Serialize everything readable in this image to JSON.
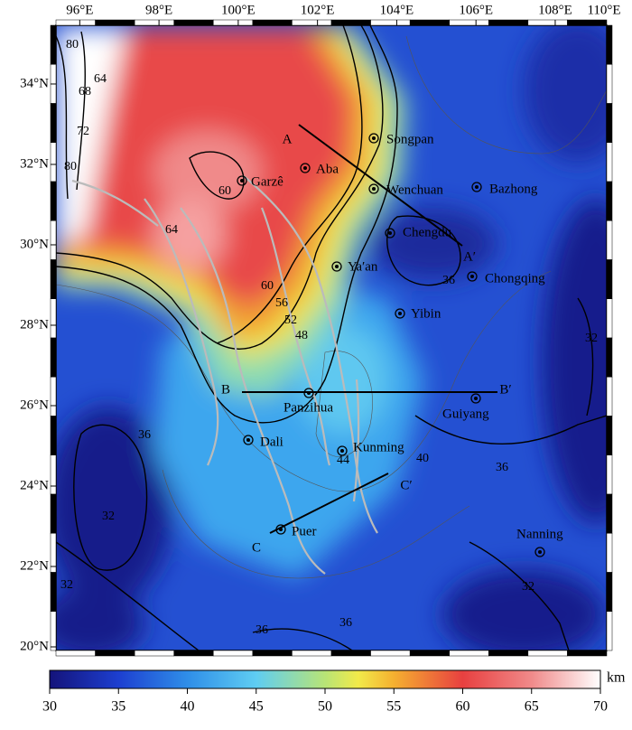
{
  "map": {
    "x_ticks": [
      {
        "value": 96,
        "label": "96°E"
      },
      {
        "value": 98,
        "label": "98°E"
      },
      {
        "value": 100,
        "label": "100°E"
      },
      {
        "value": 102,
        "label": "102°E"
      },
      {
        "value": 104,
        "label": "104°E"
      },
      {
        "value": 106,
        "label": "106°E"
      },
      {
        "value": 108,
        "label": "108°E"
      },
      {
        "value": 110,
        "label": "110°E"
      }
    ],
    "y_ticks": [
      {
        "value": 34,
        "label": "34°N"
      },
      {
        "value": 32,
        "label": "32°N"
      },
      {
        "value": 30,
        "label": "30°N"
      },
      {
        "value": 28,
        "label": "28°N"
      },
      {
        "value": 26,
        "label": "26°N"
      },
      {
        "value": 24,
        "label": "24°N"
      },
      {
        "value": 22,
        "label": "22°N"
      },
      {
        "value": 20,
        "label": "20°N"
      }
    ],
    "xlim": [
      95.4,
      109.3
    ],
    "ylim": [
      19.91,
      35.46
    ],
    "cities": [
      "Songpan",
      "Aba",
      "Garzê",
      "Wenchuan",
      "Bazhong",
      "Chengdu",
      "Chongqing",
      "Ya′an",
      "Yibin",
      "Panzihua",
      "Guiyang",
      "Dali",
      "Kunming",
      "Puer",
      "Nanning"
    ],
    "profile_labels": [
      "A",
      "A′",
      "B",
      "B′",
      "C",
      "C′"
    ],
    "contour_labels": [
      "80",
      "68",
      "64",
      "72",
      "80",
      "60",
      "64",
      "60",
      "56",
      "52",
      "48",
      "36",
      "32",
      "36",
      "32",
      "44",
      "40",
      "36",
      "32",
      "32",
      "36",
      "36"
    ]
  },
  "colorbar": {
    "lim": [
      30,
      70
    ],
    "ticks": [
      30,
      35,
      40,
      45,
      50,
      55,
      60,
      65,
      70
    ],
    "unit": "km"
  }
}
